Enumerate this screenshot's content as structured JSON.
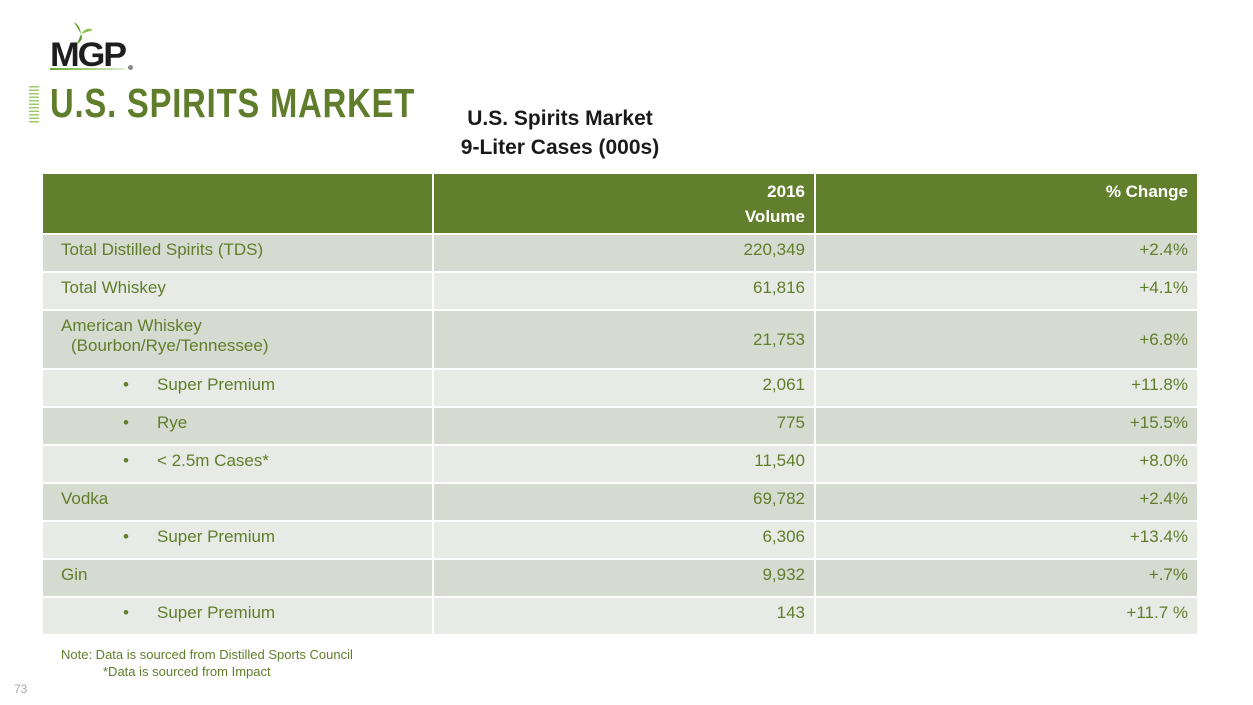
{
  "logo": {
    "text": "MGP"
  },
  "slide_title": "U.S. SPIRITS MARKET",
  "table_title": [
    "U.S. Spirits Market",
    "9-Liter Cases (000s)"
  ],
  "column_lines": {
    "volume": [
      "2016",
      "Volume"
    ],
    "change": "% Change"
  },
  "rows": [
    {
      "label": "Total Distilled Spirits (TDS)",
      "volume": "220,349",
      "change": "+2.4%"
    },
    {
      "label": "Total Whiskey",
      "volume": "61,816",
      "change": "+4.1%"
    },
    {
      "label": "American Whiskey",
      "label2": "(Bourbon/Rye/Tennessee)",
      "volume": "21,753",
      "change": "+6.8%"
    },
    {
      "label": "Super Premium",
      "bullet": "•",
      "volume": "2,061",
      "change": "+11.8%"
    },
    {
      "label": "Rye",
      "bullet": "•",
      "volume": "775",
      "change": "+15.5%"
    },
    {
      "label": "< 2.5m Cases*",
      "bullet": "•",
      "volume": "11,540",
      "change": "+8.0%"
    },
    {
      "label": "Vodka",
      "volume": "69,782",
      "change": "+2.4%"
    },
    {
      "label": "Super Premium",
      "bullet": "•",
      "volume": "6,306",
      "change": "+13.4%"
    },
    {
      "label": "Gin",
      "volume": "9,932",
      "change": "+.7%"
    },
    {
      "label": "Super Premium",
      "bullet": "•",
      "volume": "143",
      "change": "+11.7 %"
    }
  ],
  "notes": [
    "Note:  Data is sourced from Distilled Sports Council",
    "*Data is sourced from Impact"
  ],
  "page_number": "73",
  "colors": {
    "header": "#627f2e",
    "text": "#5f7d2a",
    "row_dark": "#d5dbd1",
    "row_light": "#e8ebe5"
  }
}
